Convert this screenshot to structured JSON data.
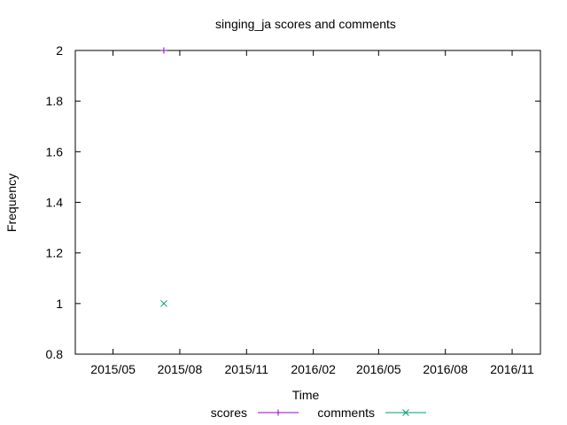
{
  "chart_data": {
    "type": "scatter",
    "title": "singing_ja scores and comments",
    "xlabel": "Time",
    "ylabel": "Frequency",
    "x_axis_type": "date",
    "xlim": [
      "2015-03-10",
      "2016-12-10"
    ],
    "ylim": [
      0.8,
      2
    ],
    "x_ticks": [
      {
        "date": "2015-05-01",
        "label": "2015/05"
      },
      {
        "date": "2015-08-01",
        "label": "2015/08"
      },
      {
        "date": "2015-11-01",
        "label": "2015/11"
      },
      {
        "date": "2016-02-01",
        "label": "2016/02"
      },
      {
        "date": "2016-05-01",
        "label": "2016/05"
      },
      {
        "date": "2016-08-01",
        "label": "2016/08"
      },
      {
        "date": "2016-11-01",
        "label": "2016/11"
      }
    ],
    "y_ticks": [
      0.8,
      1,
      1.2,
      1.4,
      1.6,
      1.8,
      2
    ],
    "y_tick_labels": [
      "0.8",
      "1",
      "1.2",
      "1.4",
      "1.6",
      "1.8",
      "2"
    ],
    "grid": false,
    "legend_position": "bottom-center",
    "series": [
      {
        "name": "scores",
        "color": "#9400d3",
        "marker": "plus",
        "points": [
          {
            "x": "2015-07-10",
            "y": 2
          }
        ]
      },
      {
        "name": "comments",
        "color": "#009e73",
        "marker": "cross",
        "points": [
          {
            "x": "2015-07-10",
            "y": 1
          }
        ]
      }
    ]
  }
}
